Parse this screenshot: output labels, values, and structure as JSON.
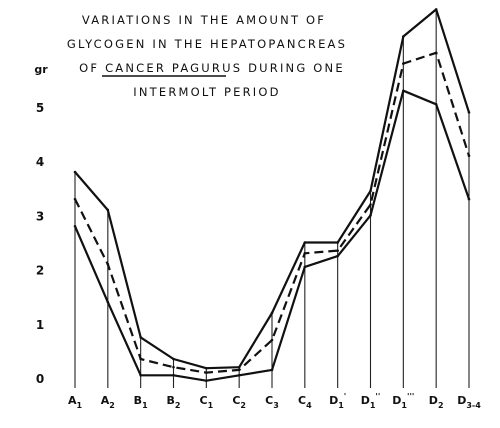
{
  "chart_data": {
    "type": "line",
    "title_lines": [
      "VARIATIONS IN THE AMOUNT OF",
      "GLYCOGEN IN THE HEPATOPANCREAS",
      "OF CANCER PAGURUS DURING ONE",
      "INTERMOLT PERIOD"
    ],
    "title_underlined_words": [
      "CANCER PAGURUS"
    ],
    "ylabel": "gr",
    "ylim": [
      0,
      6.5
    ],
    "yticks": [
      "0",
      "1",
      "2",
      "3",
      "4",
      "5"
    ],
    "x": [
      "A1",
      "A2",
      "B1",
      "B2",
      "C1",
      "C2",
      "C3",
      "C4",
      "D1",
      "D1''",
      "D1'''",
      "D2",
      "D3-4"
    ],
    "x_display": [
      {
        "base": "A",
        "sub": "1"
      },
      {
        "base": "A",
        "sub": "2"
      },
      {
        "base": "B",
        "sub": "1"
      },
      {
        "base": "B",
        "sub": "2"
      },
      {
        "base": "C",
        "sub": "1"
      },
      {
        "base": "C",
        "sub": "2"
      },
      {
        "base": "C",
        "sub": "3"
      },
      {
        "base": "C",
        "sub": "4"
      },
      {
        "base": "D",
        "sub": "1",
        "prime": "'"
      },
      {
        "base": "D",
        "sub": "1",
        "prime": "''"
      },
      {
        "base": "D",
        "sub": "1",
        "prime": "'''"
      },
      {
        "base": "D",
        "sub": "2"
      },
      {
        "base": "D",
        "sub": "3-4"
      }
    ],
    "series": [
      {
        "style": "solid",
        "values": [
          3.8,
          3.1,
          0.75,
          0.35,
          0.18,
          0.2,
          1.2,
          2.5,
          2.5,
          3.45,
          6.3,
          6.8,
          4.9
        ]
      },
      {
        "style": "dashed",
        "values": [
          3.3,
          2.1,
          0.35,
          0.2,
          0.1,
          0.15,
          0.7,
          2.3,
          2.35,
          3.2,
          5.8,
          6.0,
          4.1
        ]
      },
      {
        "style": "solid",
        "values": [
          2.8,
          1.4,
          0.05,
          0.05,
          -0.05,
          0.05,
          0.15,
          2.05,
          2.25,
          3.0,
          5.3,
          5.05,
          3.3
        ]
      }
    ],
    "grid": false,
    "drop_lines": true
  }
}
